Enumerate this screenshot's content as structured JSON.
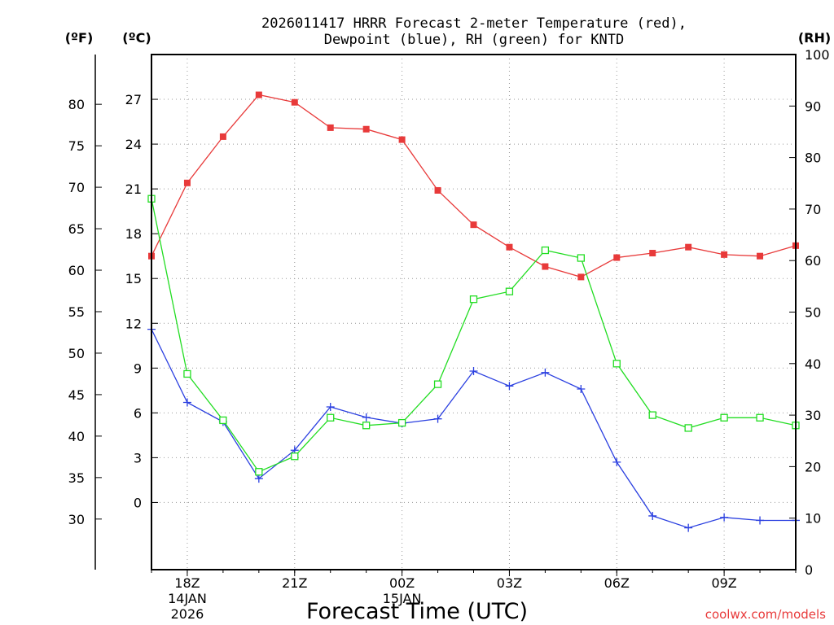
{
  "chart_data": {
    "type": "line",
    "title_line1": "2026011417 HRRR Forecast 2-meter Temperature (red),",
    "title_line2": "Dewpoint (blue), RH (green) for KNTD",
    "xlabel": "Forecast Time (UTC)",
    "credit": "coolwx.com/models",
    "unit_f": "(ºF)",
    "unit_c": "(ºC)",
    "unit_rh": "(RH)",
    "hours": [
      17,
      18,
      19,
      20,
      21,
      22,
      23,
      24,
      25,
      26,
      27,
      28,
      29,
      30,
      31,
      32,
      33,
      34,
      35
    ],
    "xlim": [
      17,
      35
    ],
    "ylim_c": [
      -4.5,
      30
    ],
    "ylim_rh": [
      0,
      100
    ],
    "x_ticks": [
      {
        "hour": 18,
        "label": "18Z"
      },
      {
        "hour": 21,
        "label": "21Z"
      },
      {
        "hour": 24,
        "label": "00Z"
      },
      {
        "hour": 27,
        "label": "03Z"
      },
      {
        "hour": 30,
        "label": "06Z"
      },
      {
        "hour": 33,
        "label": "09Z"
      }
    ],
    "date_labels": [
      {
        "hour": 18,
        "line1": "14JAN",
        "line2": "2026"
      },
      {
        "hour": 24,
        "line1": "15JAN",
        "line2": ""
      }
    ],
    "c_ticks": [
      0,
      3,
      6,
      9,
      12,
      15,
      18,
      21,
      24,
      27
    ],
    "f_ticks": [
      30,
      35,
      40,
      45,
      50,
      55,
      60,
      65,
      70,
      75,
      80
    ],
    "rh_ticks": [
      0,
      10,
      20,
      30,
      40,
      50,
      60,
      70,
      80,
      90,
      100
    ],
    "series": [
      {
        "name": "Temperature",
        "units": "degC",
        "color": "#e83a3a",
        "marker": "filled-square",
        "values": [
          16.5,
          21.4,
          24.5,
          27.3,
          26.8,
          25.1,
          25.0,
          24.3,
          20.9,
          18.6,
          17.1,
          15.8,
          15.1,
          16.4,
          16.7,
          17.1,
          16.6,
          16.5,
          17.2
        ]
      },
      {
        "name": "Dewpoint",
        "units": "degC",
        "color": "#2a3fe0",
        "marker": "plus",
        "values": [
          11.6,
          6.7,
          5.4,
          1.6,
          3.5,
          6.4,
          5.7,
          5.3,
          5.6,
          8.8,
          7.8,
          8.7,
          7.6,
          2.7,
          -0.9,
          -1.7,
          -1.0,
          -1.2,
          -1.2
        ]
      },
      {
        "name": "RH",
        "units": "percent",
        "color": "#22dd22",
        "marker": "open-square",
        "values": [
          72,
          38,
          29,
          19,
          22,
          29.5,
          28,
          28.5,
          36,
          52.5,
          54,
          62,
          60.5,
          40,
          30,
          27.5,
          29.5,
          29.5,
          28
        ]
      }
    ]
  }
}
